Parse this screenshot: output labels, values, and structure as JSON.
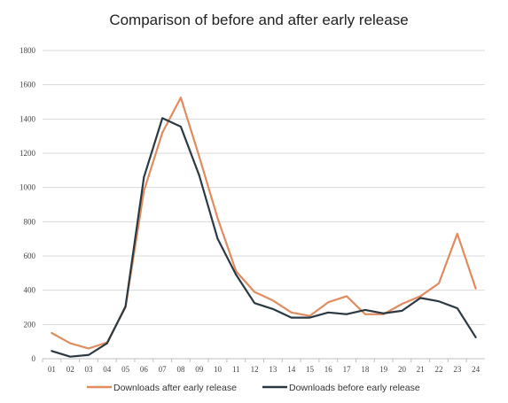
{
  "chart_data": {
    "type": "line",
    "title": "Comparison of before and after early release",
    "xlabel": "",
    "ylabel": "",
    "categories": [
      "01",
      "02",
      "03",
      "04",
      "05",
      "06",
      "07",
      "08",
      "09",
      "10",
      "11",
      "12",
      "13",
      "14",
      "15",
      "16",
      "17",
      "18",
      "19",
      "20",
      "21",
      "22",
      "23",
      "24"
    ],
    "ylim": [
      0,
      1800
    ],
    "yticks": [
      "0",
      "200",
      "400",
      "600",
      "800",
      "1000",
      "1200",
      "1400",
      "1600",
      "1800"
    ],
    "grid": true,
    "legend_position": "bottom",
    "series": [
      {
        "name": "Downloads after early release",
        "color": "#e08c5e",
        "values": [
          150,
          90,
          60,
          95,
          300,
          980,
          1320,
          1525,
          1180,
          820,
          510,
          390,
          340,
          270,
          250,
          330,
          365,
          260,
          260,
          320,
          365,
          440,
          730,
          410
        ]
      },
      {
        "name": "Downloads before early release",
        "color": "#2b3a42",
        "values": [
          45,
          12,
          22,
          90,
          305,
          1060,
          1405,
          1355,
          1070,
          700,
          490,
          325,
          290,
          240,
          240,
          270,
          260,
          285,
          265,
          280,
          355,
          335,
          295,
          125
        ]
      }
    ]
  }
}
